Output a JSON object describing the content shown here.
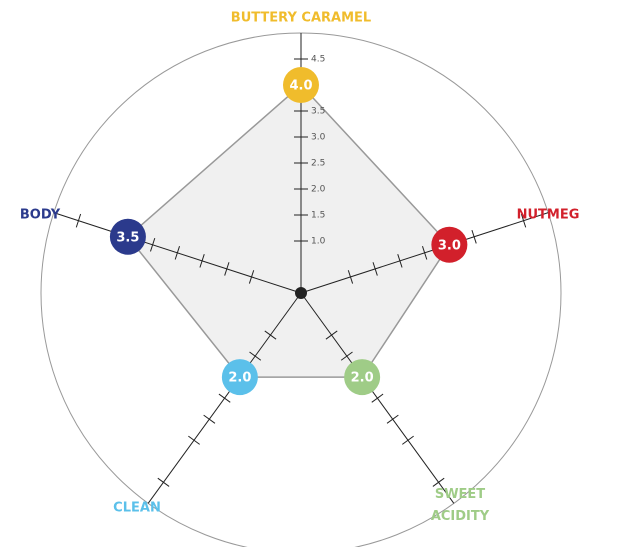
{
  "chart_data": {
    "type": "radar",
    "categories": [
      "BUTTERY CARAMEL",
      "NUTMEG",
      "SWEET ACIDITY",
      "CLEAN",
      "BODY"
    ],
    "colors": [
      "#f0bc2c",
      "#d2202b",
      "#9fcc87",
      "#5bc0ea",
      "#2b3a8c"
    ],
    "values": [
      4,
      3,
      2,
      2,
      3.5
    ],
    "value_labels": [
      "4.0",
      "3.0",
      "2.0",
      "2.0",
      "3.5"
    ],
    "rlim": [
      0,
      5
    ],
    "rticks": [
      {
        "value": 1,
        "label": "1.0"
      },
      1.5,
      {
        "value": 2,
        "label": "2.0"
      },
      2.5,
      {
        "value": 3,
        "label": "3.0"
      },
      3.5,
      4.5
    ]
  }
}
